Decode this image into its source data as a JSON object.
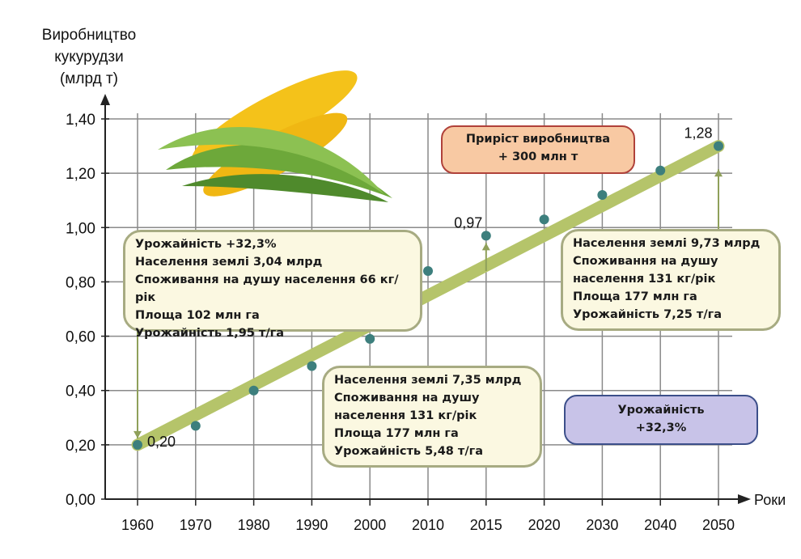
{
  "chart_data": {
    "type": "scatter",
    "title": "",
    "ylabel": "Виробництво кукурудзи (млрд т)",
    "xlabel": "Роки",
    "ylim": [
      0,
      1.4
    ],
    "yticks": [
      "0,00",
      "0,20",
      "0,40",
      "0,60",
      "0,80",
      "1,00",
      "1,20",
      "1,40"
    ],
    "categories": [
      "1960",
      "1970",
      "1980",
      "1990",
      "2000",
      "2010",
      "2015",
      "2020",
      "2030",
      "2040",
      "2050"
    ],
    "values": [
      0.2,
      0.27,
      0.4,
      0.49,
      0.59,
      0.84,
      0.97,
      1.03,
      1.12,
      1.21,
      1.28
    ],
    "data_labels": {
      "1960": "0,20",
      "2015": "0,97",
      "2050": "1,28"
    },
    "trend_line": {
      "from": {
        "x": "1960",
        "y": 0.2
      },
      "to": {
        "x": "2050",
        "y": 1.3
      }
    },
    "grid": true
  },
  "ylabel_lines": [
    "Виробництво",
    "кукурудзи",
    "(млрд т)"
  ],
  "annotations": {
    "box1960": [
      "Урожайність +32,3%",
      "Населення землі 3,04 млрд",
      "Споживання на душу населення 66 кг/рік",
      "Площа 102 млн га",
      "Урожайність 1,95 т/га"
    ],
    "box2015": [
      "Населення землі 7,35 млрд",
      "Споживання на душу",
      "населення 131 кг/рік",
      "Площа 177 млн га",
      "Урожайність 5,48 т/га"
    ],
    "box2050": [
      "Населення землі 9,73 млрд",
      "Споживання на душу",
      "населення 131 кг/рік",
      "Площа 177 млн га",
      "Урожайність 7,25 т/га"
    ],
    "growth": [
      "Приріст виробництва",
      "+ 300 млн т"
    ],
    "yield": [
      "Урожайність",
      "+32,3%"
    ]
  },
  "colors": {
    "trend": "#b5c46a",
    "point": "#3d7f7d",
    "grid": "#8a8a8a",
    "arrow": "#8fa05a"
  }
}
